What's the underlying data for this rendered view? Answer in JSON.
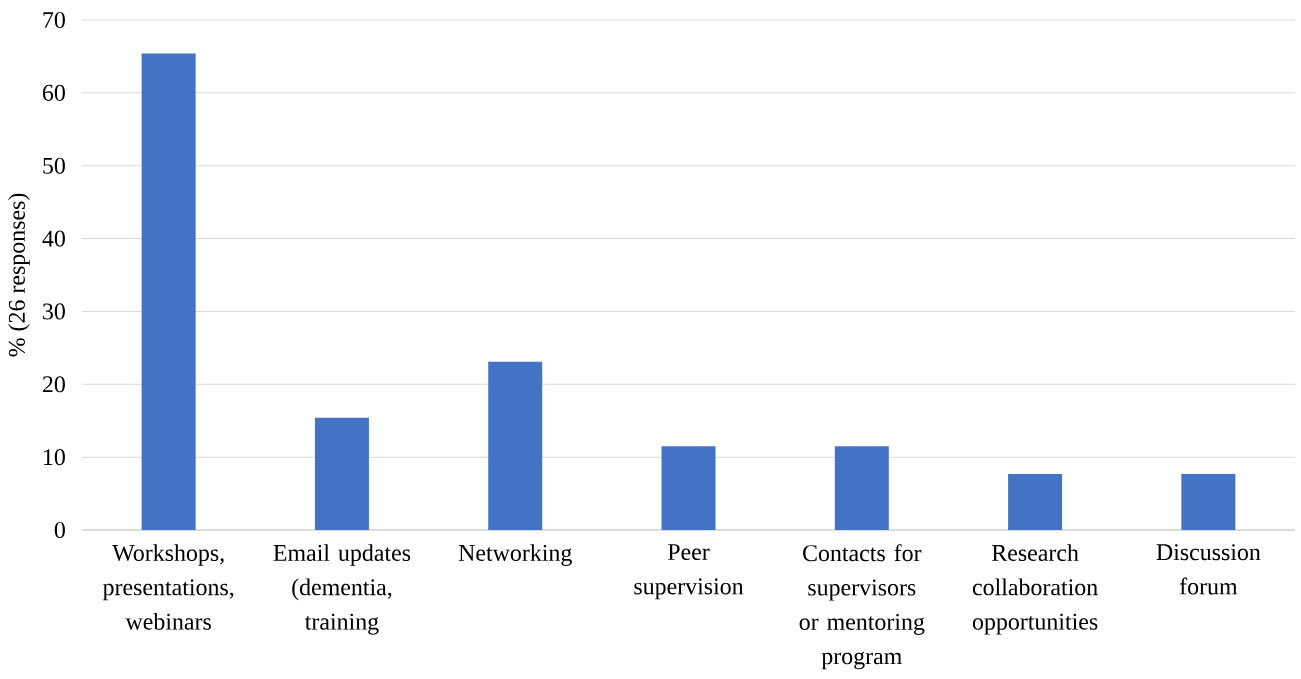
{
  "chart_data": {
    "type": "bar",
    "ylabel": "% (26 responses)",
    "categories": [
      "Workshops, presentations, webinars",
      "Email updates (dementia, training",
      "Networking",
      "Peer supervision",
      "Contacts for supervisors or mentoring program",
      "Research collaboration opportunities",
      "Discussion forum"
    ],
    "values": [
      65.4,
      15.4,
      23.1,
      11.5,
      11.5,
      7.7,
      7.7
    ],
    "color": "#4472c4",
    "ylim": [
      0,
      70
    ],
    "yticks": [
      0,
      10,
      20,
      30,
      40,
      50,
      60,
      70
    ],
    "grid": "y"
  }
}
